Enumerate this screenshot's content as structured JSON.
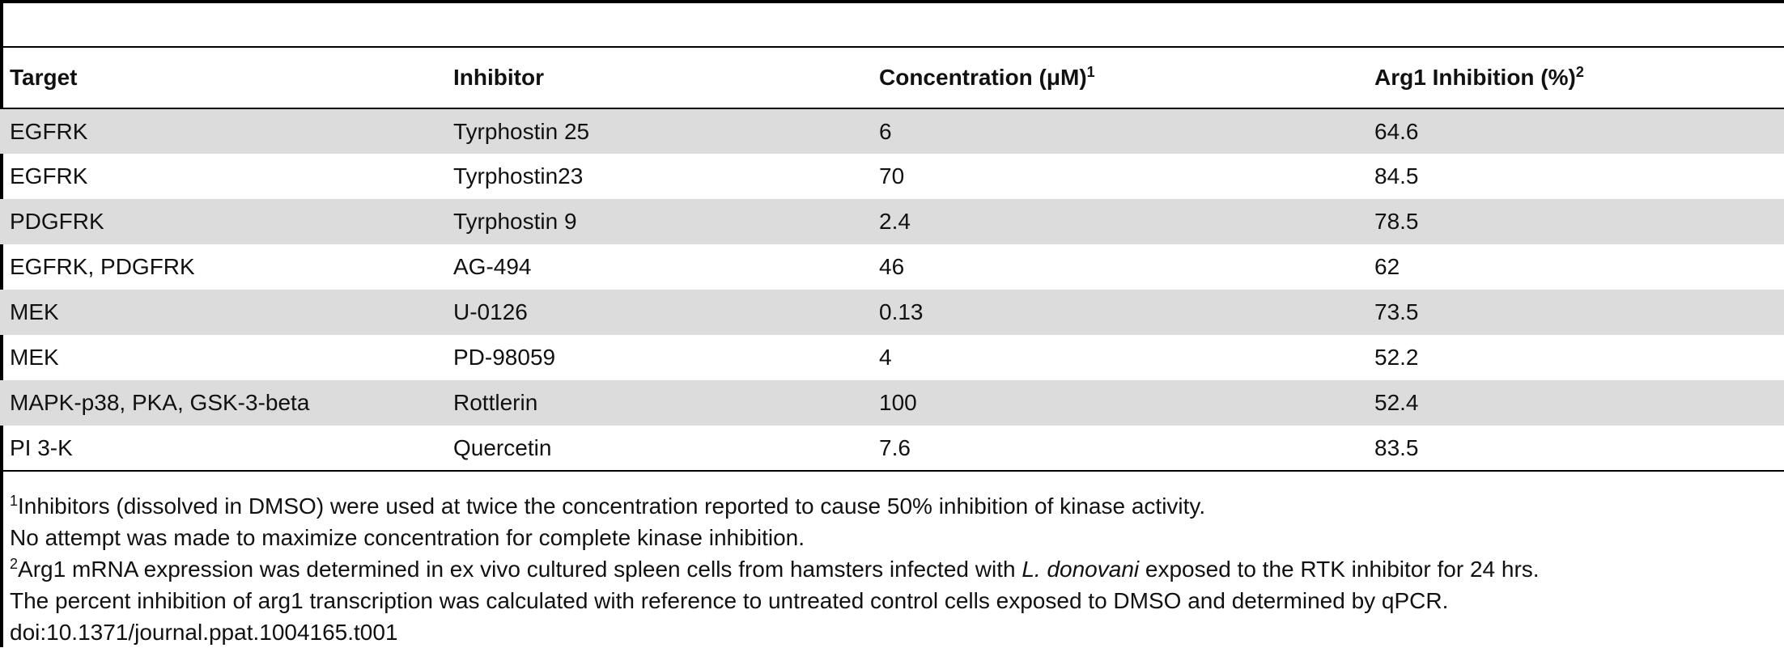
{
  "table": {
    "headers": {
      "target": "Target",
      "inhibitor": "Inhibitor",
      "concentration": "Concentration (μM)",
      "concentration_sup": "1",
      "arg1": "Arg1 Inhibition (%)",
      "arg1_sup": "2"
    },
    "rows": [
      {
        "target": "EGFRK",
        "inhibitor": "Tyrphostin 25",
        "concentration": "6",
        "inhibition": "64.6"
      },
      {
        "target": "EGFRK",
        "inhibitor": "Tyrphostin23",
        "concentration": "70",
        "inhibition": "84.5"
      },
      {
        "target": "PDGFRK",
        "inhibitor": "Tyrphostin 9",
        "concentration": "2.4",
        "inhibition": "78.5"
      },
      {
        "target": "EGFRK, PDGFRK",
        "inhibitor": "AG-494",
        "concentration": "46",
        "inhibition": "62"
      },
      {
        "target": "MEK",
        "inhibitor": "U-0126",
        "concentration": "0.13",
        "inhibition": "73.5"
      },
      {
        "target": "MEK",
        "inhibitor": "PD-98059",
        "concentration": "4",
        "inhibition": "52.2"
      },
      {
        "target": "MAPK-p38, PKA, GSK-3-beta",
        "inhibitor": "Rottlerin",
        "concentration": "100",
        "inhibition": "52.4"
      },
      {
        "target": "PI 3-K",
        "inhibitor": "Quercetin",
        "concentration": "7.6",
        "inhibition": "83.5"
      }
    ]
  },
  "footnotes": {
    "note1_sup": "1",
    "note1_line1": "Inhibitors (dissolved in DMSO) were used at twice the concentration reported to cause 50% inhibition of kinase activity.",
    "note1_line2": "No attempt was made to maximize concentration for complete kinase inhibition.",
    "note2_sup": "2",
    "note2_line1_pre": "Arg1 mRNA expression was determined in ex vivo cultured spleen cells from hamsters infected with ",
    "note2_line1_italic": "L. donovani",
    "note2_line1_post": " exposed to the RTK inhibitor for 24 hrs.",
    "note2_line2": "The percent inhibition of arg1 transcription was calculated with reference to untreated control cells exposed to DMSO and determined by qPCR.",
    "doi": "doi:10.1371/journal.ppat.1004165.t001"
  }
}
